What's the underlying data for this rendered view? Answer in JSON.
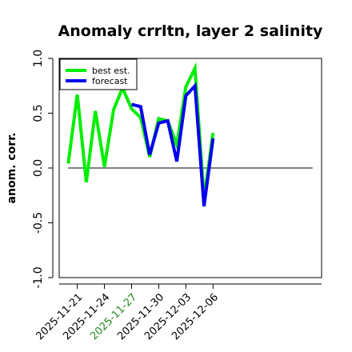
{
  "chart_data": {
    "type": "line",
    "title": "Anomaly crrltn, layer 2 salinity",
    "ylabel": "anom. corr.",
    "xlabel": "",
    "ylim": [
      -1.0,
      1.0
    ],
    "yticks": [
      "-1.0",
      "-0.5",
      "0.0",
      "0.5",
      "1.0"
    ],
    "ytick_values": [
      -1.0,
      -0.5,
      0.0,
      0.5,
      1.0
    ],
    "xlim_days": [
      -2,
      27
    ],
    "xticks": [
      {
        "label": "2025-11-21",
        "color": "#000000"
      },
      {
        "label": "2025-11-24",
        "color": "#000000"
      },
      {
        "label": "2025-11-27",
        "color": "#228b22"
      },
      {
        "label": "2025-11-30",
        "color": "#000000"
      },
      {
        "label": "2025-12-03",
        "color": "#000000"
      },
      {
        "label": "2025-12-06",
        "color": "#000000"
      }
    ],
    "reference_line": 0.0,
    "legend_position": "top-left",
    "series": [
      {
        "name": "best est.",
        "color": "#00ee00",
        "x": [
          "2025-11-20",
          "2025-11-21",
          "2025-11-22",
          "2025-11-23",
          "2025-11-24",
          "2025-11-25",
          "2025-11-26",
          "2025-11-27",
          "2025-11-28",
          "2025-11-29",
          "2025-11-30",
          "2025-12-01",
          "2025-12-02",
          "2025-12-03",
          "2025-12-04",
          "2025-12-05",
          "2025-12-06"
        ],
        "values": [
          0.04,
          0.67,
          -0.13,
          0.52,
          0.01,
          0.53,
          0.73,
          0.54,
          0.46,
          0.1,
          0.45,
          0.43,
          0.21,
          0.74,
          0.91,
          -0.28,
          0.32
        ]
      },
      {
        "name": "forecast",
        "color": "#0000ee",
        "x": [
          "2025-11-27",
          "2025-11-28",
          "2025-11-29",
          "2025-11-30",
          "2025-12-01",
          "2025-12-02",
          "2025-12-03",
          "2025-12-04",
          "2025-12-05",
          "2025-12-06"
        ],
        "values": [
          0.58,
          0.56,
          0.12,
          0.41,
          0.43,
          0.06,
          0.66,
          0.75,
          -0.35,
          0.27
        ]
      }
    ]
  }
}
